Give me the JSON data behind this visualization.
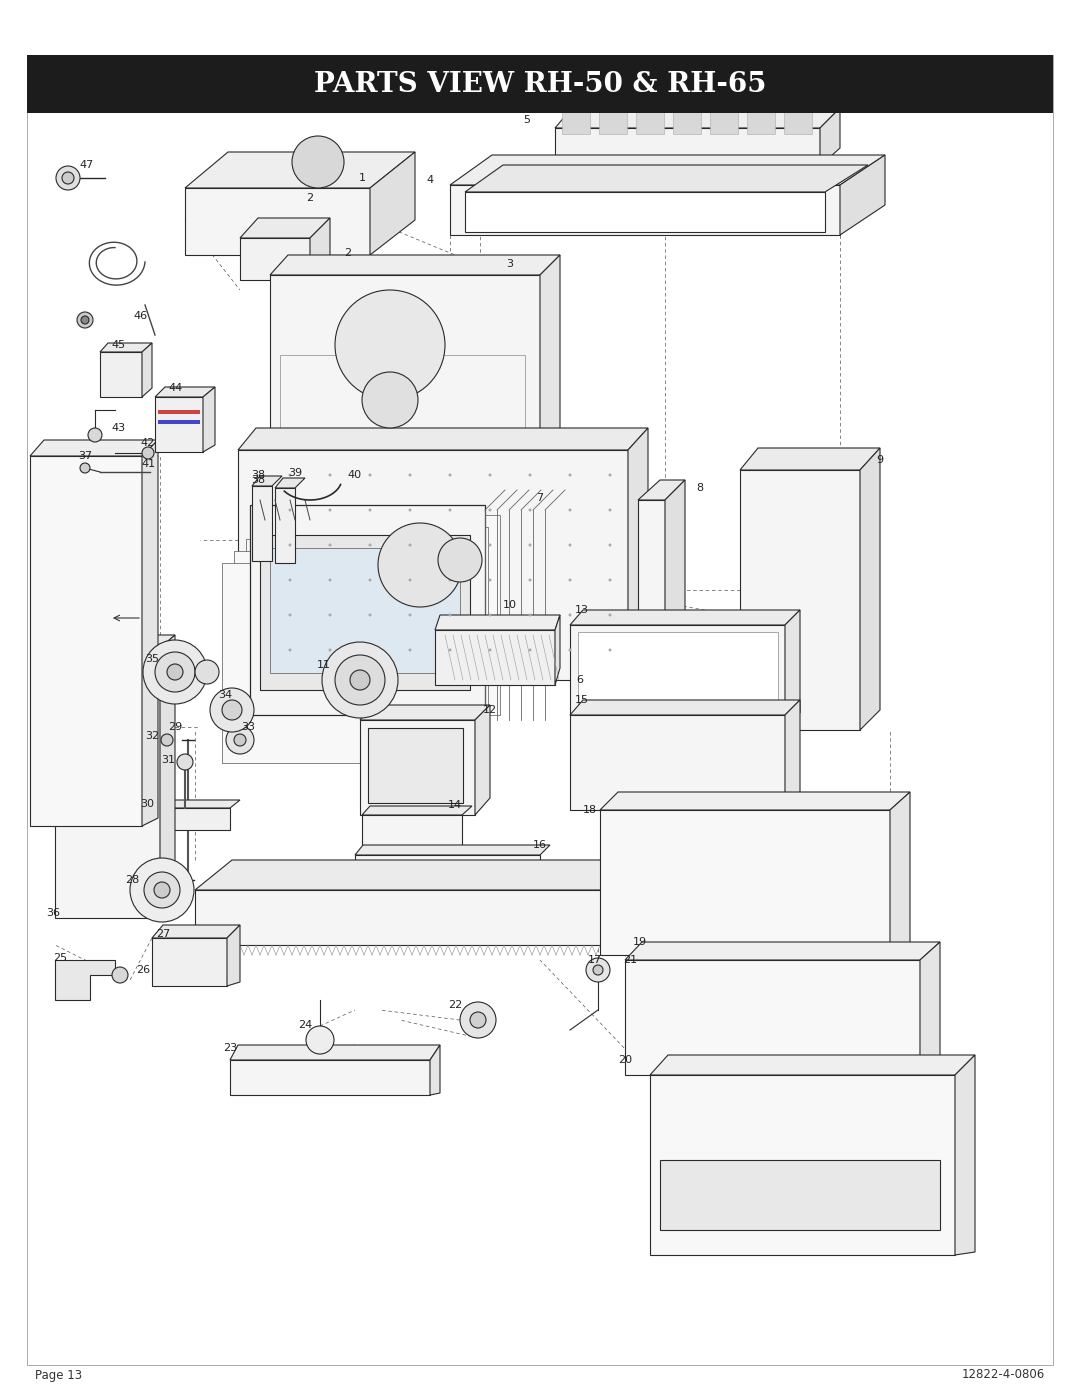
{
  "title": "PARTS VIEW RH-50 & RH-65",
  "title_bg_color": "#1c1c1c",
  "title_text_color": "#ffffff",
  "page_bg_color": "#ffffff",
  "footer_left": "Page 13",
  "footer_right": "12822-4-0806",
  "footer_fontsize": 8.5,
  "title_fontsize": 20,
  "fig_width": 10.8,
  "fig_height": 13.97,
  "dpi": 100,
  "line_color": "#2a2a2a",
  "label_fontsize": 7.5
}
